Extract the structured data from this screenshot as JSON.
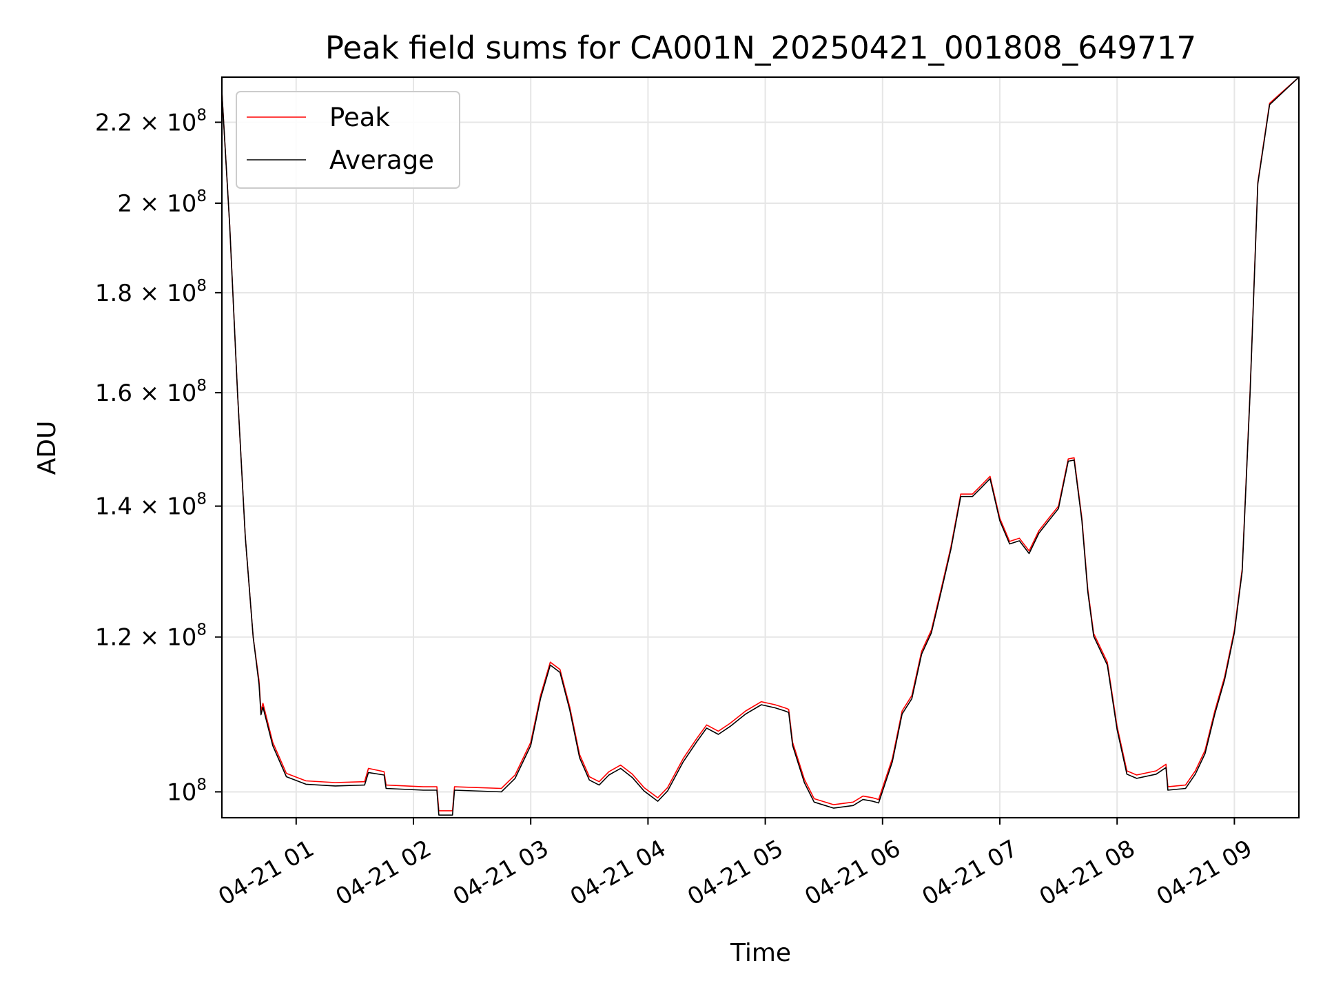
{
  "chart_data": {
    "type": "line",
    "title": "Peak field sums for CA001N_20250421_001808_649717",
    "xlabel": "Time",
    "ylabel": "ADU",
    "x_scale": "time",
    "y_scale": "log",
    "x_range": [
      "2025-04-21 00:22",
      "2025-04-21 09:33"
    ],
    "ylim": [
      97000000,
      232000000
    ],
    "grid": true,
    "legend_position": "top-left",
    "x_ticks": [
      {
        "t": "2025-04-21 01:00",
        "label": "04-21 01"
      },
      {
        "t": "2025-04-21 02:00",
        "label": "04-21 02"
      },
      {
        "t": "2025-04-21 03:00",
        "label": "04-21 03"
      },
      {
        "t": "2025-04-21 04:00",
        "label": "04-21 04"
      },
      {
        "t": "2025-04-21 05:00",
        "label": "04-21 05"
      },
      {
        "t": "2025-04-21 06:00",
        "label": "04-21 06"
      },
      {
        "t": "2025-04-21 07:00",
        "label": "04-21 07"
      },
      {
        "t": "2025-04-21 08:00",
        "label": "04-21 08"
      },
      {
        "t": "2025-04-21 09:00",
        "label": "04-21 09"
      }
    ],
    "y_ticks": [
      {
        "v": 100000000,
        "mant": "10",
        "exp": "8"
      },
      {
        "v": 120000000,
        "mant": "1.2 × 10",
        "exp": "8"
      },
      {
        "v": 140000000,
        "mant": "1.4 × 10",
        "exp": "8"
      },
      {
        "v": 160000000,
        "mant": "1.6 × 10",
        "exp": "8"
      },
      {
        "v": 180000000,
        "mant": "1.8 × 10",
        "exp": "8"
      },
      {
        "v": 200000000,
        "mant": "2 × 10",
        "exp": "8"
      },
      {
        "v": 220000000,
        "mant": "2.2 × 10",
        "exp": "8"
      }
    ],
    "series": [
      {
        "name": "Peak",
        "color": "#ff0000",
        "points": [
          [
            "2025-04-21 00:22",
            228000000
          ],
          [
            "2025-04-21 00:26",
            195000000
          ],
          [
            "2025-04-21 00:30",
            160000000
          ],
          [
            "2025-04-21 00:34",
            135000000
          ],
          [
            "2025-04-21 00:38",
            120000000
          ],
          [
            "2025-04-21 00:41",
            114000000
          ],
          [
            "2025-04-21 00:42",
            110000000
          ],
          [
            "2025-04-21 00:43",
            111000000
          ],
          [
            "2025-04-21 00:48",
            106000000
          ],
          [
            "2025-04-21 00:55",
            102200000
          ],
          [
            "2025-04-21 01:05",
            101300000
          ],
          [
            "2025-04-21 01:20",
            101100000
          ],
          [
            "2025-04-21 01:35",
            101200000
          ],
          [
            "2025-04-21 01:37",
            102800000
          ],
          [
            "2025-04-21 01:45",
            102400000
          ],
          [
            "2025-04-21 01:46",
            100800000
          ],
          [
            "2025-04-21 02:05",
            100600000
          ],
          [
            "2025-04-21 02:12",
            100600000
          ],
          [
            "2025-04-21 02:13",
            97800000
          ],
          [
            "2025-04-21 02:20",
            97800000
          ],
          [
            "2025-04-21 02:21",
            100600000
          ],
          [
            "2025-04-21 02:45",
            100400000
          ],
          [
            "2025-04-21 02:52",
            102000000
          ],
          [
            "2025-04-21 03:00",
            106000000
          ],
          [
            "2025-04-21 03:05",
            112000000
          ],
          [
            "2025-04-21 03:10",
            116500000
          ],
          [
            "2025-04-21 03:15",
            115500000
          ],
          [
            "2025-04-21 03:20",
            110500000
          ],
          [
            "2025-04-21 03:25",
            104500000
          ],
          [
            "2025-04-21 03:30",
            101800000
          ],
          [
            "2025-04-21 03:35",
            101200000
          ],
          [
            "2025-04-21 03:40",
            102400000
          ],
          [
            "2025-04-21 03:46",
            103200000
          ],
          [
            "2025-04-21 03:52",
            102100000
          ],
          [
            "2025-04-21 03:58",
            100500000
          ],
          [
            "2025-04-21 04:05",
            99300000
          ],
          [
            "2025-04-21 04:10",
            100500000
          ],
          [
            "2025-04-21 04:18",
            104000000
          ],
          [
            "2025-04-21 04:25",
            106500000
          ],
          [
            "2025-04-21 04:30",
            108200000
          ],
          [
            "2025-04-21 04:36",
            107400000
          ],
          [
            "2025-04-21 04:42",
            108400000
          ],
          [
            "2025-04-21 04:50",
            110000000
          ],
          [
            "2025-04-21 04:58",
            111200000
          ],
          [
            "2025-04-21 05:05",
            110800000
          ],
          [
            "2025-04-21 05:10",
            110400000
          ],
          [
            "2025-04-21 05:12",
            110200000
          ],
          [
            "2025-04-21 05:14",
            106000000
          ],
          [
            "2025-04-21 05:20",
            101500000
          ],
          [
            "2025-04-21 05:25",
            99200000
          ],
          [
            "2025-04-21 05:35",
            98500000
          ],
          [
            "2025-04-21 05:45",
            98800000
          ],
          [
            "2025-04-21 05:50",
            99500000
          ],
          [
            "2025-04-21 05:55",
            99300000
          ],
          [
            "2025-04-21 05:58",
            99100000
          ],
          [
            "2025-04-21 06:05",
            104000000
          ],
          [
            "2025-04-21 06:10",
            110000000
          ],
          [
            "2025-04-21 06:15",
            112000000
          ],
          [
            "2025-04-21 06:20",
            118000000
          ],
          [
            "2025-04-21 06:25",
            121000000
          ],
          [
            "2025-04-21 06:30",
            127000000
          ],
          [
            "2025-04-21 06:35",
            133500000
          ],
          [
            "2025-04-21 06:40",
            142000000
          ],
          [
            "2025-04-21 06:46",
            142000000
          ],
          [
            "2025-04-21 06:50",
            143300000
          ],
          [
            "2025-04-21 06:55",
            145000000
          ],
          [
            "2025-04-21 07:00",
            138000000
          ],
          [
            "2025-04-21 07:05",
            134300000
          ],
          [
            "2025-04-21 07:10",
            134800000
          ],
          [
            "2025-04-21 07:15",
            132800000
          ],
          [
            "2025-04-21 07:20",
            136000000
          ],
          [
            "2025-04-21 07:25",
            138000000
          ],
          [
            "2025-04-21 07:30",
            140000000
          ],
          [
            "2025-04-21 07:35",
            148000000
          ],
          [
            "2025-04-21 07:38",
            148200000
          ],
          [
            "2025-04-21 07:42",
            138000000
          ],
          [
            "2025-04-21 07:45",
            127000000
          ],
          [
            "2025-04-21 07:48",
            120500000
          ],
          [
            "2025-04-21 07:55",
            116500000
          ],
          [
            "2025-04-21 08:00",
            108000000
          ],
          [
            "2025-04-21 08:05",
            102500000
          ],
          [
            "2025-04-21 08:10",
            102000000
          ],
          [
            "2025-04-21 08:20",
            102500000
          ],
          [
            "2025-04-21 08:25",
            103300000
          ],
          [
            "2025-04-21 08:26",
            100600000
          ],
          [
            "2025-04-21 08:35",
            100800000
          ],
          [
            "2025-04-21 08:40",
            102500000
          ],
          [
            "2025-04-21 08:45",
            105000000
          ],
          [
            "2025-04-21 08:50",
            110000000
          ],
          [
            "2025-04-21 08:55",
            114500000
          ],
          [
            "2025-04-21 09:00",
            121000000
          ],
          [
            "2025-04-21 09:04",
            130000000
          ],
          [
            "2025-04-21 09:08",
            160000000
          ],
          [
            "2025-04-21 09:12",
            205000000
          ],
          [
            "2025-04-21 09:18",
            225000000
          ],
          [
            "2025-04-21 09:33",
            232000000
          ]
        ]
      },
      {
        "name": "Average",
        "color": "#000000",
        "points": [
          [
            "2025-04-21 00:22",
            228000000
          ],
          [
            "2025-04-21 00:26",
            195000000
          ],
          [
            "2025-04-21 00:30",
            160000000
          ],
          [
            "2025-04-21 00:34",
            135000000
          ],
          [
            "2025-04-21 00:38",
            120000000
          ],
          [
            "2025-04-21 00:41",
            113500000
          ],
          [
            "2025-04-21 00:42",
            109500000
          ],
          [
            "2025-04-21 00:43",
            110500000
          ],
          [
            "2025-04-21 00:48",
            105600000
          ],
          [
            "2025-04-21 00:55",
            101800000
          ],
          [
            "2025-04-21 01:05",
            100900000
          ],
          [
            "2025-04-21 01:20",
            100700000
          ],
          [
            "2025-04-21 01:35",
            100800000
          ],
          [
            "2025-04-21 01:37",
            102300000
          ],
          [
            "2025-04-21 01:45",
            102000000
          ],
          [
            "2025-04-21 01:46",
            100400000
          ],
          [
            "2025-04-21 02:05",
            100200000
          ],
          [
            "2025-04-21 02:12",
            100200000
          ],
          [
            "2025-04-21 02:13",
            97300000
          ],
          [
            "2025-04-21 02:20",
            97300000
          ],
          [
            "2025-04-21 02:21",
            100200000
          ],
          [
            "2025-04-21 02:45",
            100000000
          ],
          [
            "2025-04-21 02:52",
            101600000
          ],
          [
            "2025-04-21 03:00",
            105600000
          ],
          [
            "2025-04-21 03:05",
            111600000
          ],
          [
            "2025-04-21 03:10",
            116100000
          ],
          [
            "2025-04-21 03:15",
            115100000
          ],
          [
            "2025-04-21 03:20",
            110100000
          ],
          [
            "2025-04-21 03:25",
            104100000
          ],
          [
            "2025-04-21 03:30",
            101400000
          ],
          [
            "2025-04-21 03:35",
            100800000
          ],
          [
            "2025-04-21 03:40",
            102000000
          ],
          [
            "2025-04-21 03:46",
            102800000
          ],
          [
            "2025-04-21 03:52",
            101700000
          ],
          [
            "2025-04-21 03:58",
            100100000
          ],
          [
            "2025-04-21 04:05",
            98900000
          ],
          [
            "2025-04-21 04:10",
            100100000
          ],
          [
            "2025-04-21 04:18",
            103600000
          ],
          [
            "2025-04-21 04:25",
            106100000
          ],
          [
            "2025-04-21 04:30",
            107800000
          ],
          [
            "2025-04-21 04:36",
            107000000
          ],
          [
            "2025-04-21 04:42",
            108000000
          ],
          [
            "2025-04-21 04:50",
            109600000
          ],
          [
            "2025-04-21 04:58",
            110800000
          ],
          [
            "2025-04-21 05:05",
            110400000
          ],
          [
            "2025-04-21 05:10",
            110000000
          ],
          [
            "2025-04-21 05:12",
            109800000
          ],
          [
            "2025-04-21 05:14",
            105600000
          ],
          [
            "2025-04-21 05:20",
            101100000
          ],
          [
            "2025-04-21 05:25",
            98800000
          ],
          [
            "2025-04-21 05:35",
            98100000
          ],
          [
            "2025-04-21 05:45",
            98400000
          ],
          [
            "2025-04-21 05:50",
            99100000
          ],
          [
            "2025-04-21 05:55",
            98900000
          ],
          [
            "2025-04-21 05:58",
            98700000
          ],
          [
            "2025-04-21 06:05",
            103600000
          ],
          [
            "2025-04-21 06:10",
            109600000
          ],
          [
            "2025-04-21 06:15",
            111600000
          ],
          [
            "2025-04-21 06:20",
            117600000
          ],
          [
            "2025-04-21 06:25",
            120600000
          ],
          [
            "2025-04-21 06:30",
            126600000
          ],
          [
            "2025-04-21 06:35",
            133100000
          ],
          [
            "2025-04-21 06:40",
            141600000
          ],
          [
            "2025-04-21 06:46",
            141600000
          ],
          [
            "2025-04-21 06:50",
            142900000
          ],
          [
            "2025-04-21 06:55",
            144600000
          ],
          [
            "2025-04-21 07:00",
            137600000
          ],
          [
            "2025-04-21 07:05",
            133900000
          ],
          [
            "2025-04-21 07:10",
            134400000
          ],
          [
            "2025-04-21 07:15",
            132400000
          ],
          [
            "2025-04-21 07:20",
            135600000
          ],
          [
            "2025-04-21 07:25",
            137600000
          ],
          [
            "2025-04-21 07:30",
            139600000
          ],
          [
            "2025-04-21 07:35",
            147600000
          ],
          [
            "2025-04-21 07:38",
            147800000
          ],
          [
            "2025-04-21 07:42",
            137600000
          ],
          [
            "2025-04-21 07:45",
            126600000
          ],
          [
            "2025-04-21 07:48",
            120100000
          ],
          [
            "2025-04-21 07:55",
            116100000
          ],
          [
            "2025-04-21 08:00",
            107600000
          ],
          [
            "2025-04-21 08:05",
            102100000
          ],
          [
            "2025-04-21 08:10",
            101600000
          ],
          [
            "2025-04-21 08:20",
            102100000
          ],
          [
            "2025-04-21 08:25",
            102900000
          ],
          [
            "2025-04-21 08:26",
            100200000
          ],
          [
            "2025-04-21 08:35",
            100400000
          ],
          [
            "2025-04-21 08:40",
            102100000
          ],
          [
            "2025-04-21 08:45",
            104600000
          ],
          [
            "2025-04-21 08:50",
            109600000
          ],
          [
            "2025-04-21 08:55",
            114100000
          ],
          [
            "2025-04-21 09:00",
            120600000
          ],
          [
            "2025-04-21 09:04",
            129600000
          ],
          [
            "2025-04-21 09:08",
            159600000
          ],
          [
            "2025-04-21 09:12",
            204600000
          ],
          [
            "2025-04-21 09:18",
            224600000
          ],
          [
            "2025-04-21 09:33",
            232000000
          ]
        ]
      }
    ]
  }
}
